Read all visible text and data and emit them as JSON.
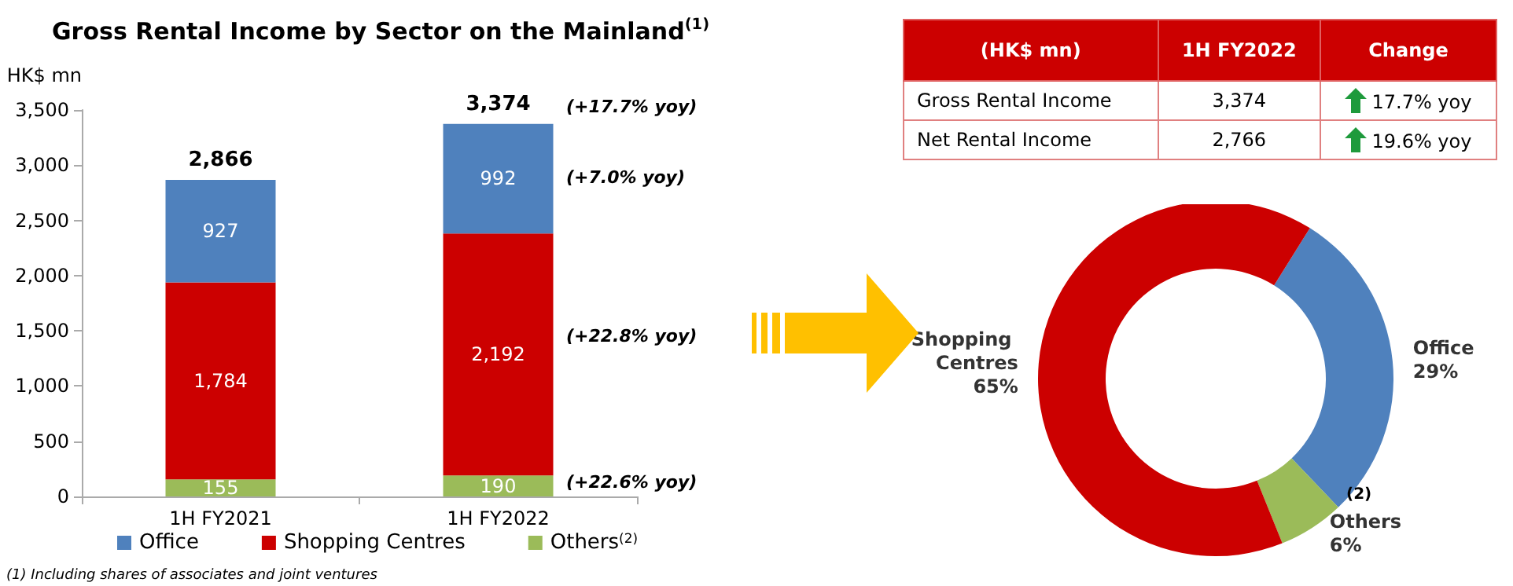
{
  "chart_data": [
    {
      "type": "bar",
      "title": "Gross Rental Income by Sector on the Mainland$^{(1)}$",
      "ylabel": "HK$ mn",
      "categories": [
        "1H FY2021",
        "1H FY2022"
      ],
      "stacked": true,
      "series": [
        {
          "name": "Others$^{(2)}$",
          "color": "#9bbb59",
          "values": [
            155,
            190
          ],
          "value_labels": [
            "155",
            "190"
          ]
        },
        {
          "name": "Shopping Centres",
          "color": "#cc0000",
          "values": [
            1784,
            2192
          ],
          "value_labels": [
            "1,784",
            "2,192"
          ]
        },
        {
          "name": "Office",
          "color": "#4f81bd",
          "values": [
            927,
            992
          ],
          "value_labels": [
            "927",
            "992"
          ]
        }
      ],
      "totals": [
        "2,866",
        "3,374"
      ],
      "ylim": [
        0,
        3500
      ],
      "yticks": [
        {
          "value": 0,
          "label": "0"
        },
        {
          "value": 500,
          "label": "500"
        },
        {
          "value": 1000,
          "label": "1,000"
        },
        {
          "value": 1500,
          "label": "1,500"
        },
        {
          "value": 2000,
          "label": "2,000"
        },
        {
          "value": 2500,
          "label": "2,500"
        },
        {
          "value": 3000,
          "label": "3,000"
        },
        {
          "value": 3500,
          "label": "3,500"
        }
      ],
      "grid": false,
      "legend": "bottom",
      "annotations": [
        "(+17.7% yoy)",
        "(+7.0% yoy)",
        "(+22.8% yoy)",
        "(+22.6% yoy)",
        "(1) Including shares of associates and joint ventures"
      ]
    },
    {
      "type": "other",
      "categories": [
        "(HK$ mn)",
        "1H FY2022",
        "Change"
      ],
      "y_categories": [
        "Gross Rental Income",
        "Net Rental Income"
      ],
      "cell_labels": [
        [
          "3,374",
          "17.7% yoy"
        ],
        [
          "2,766",
          "19.6% yoy"
        ]
      ]
    },
    {
      "type": "donut",
      "categories": [
        "Office",
        "Others",
        "Shopping Centres"
      ],
      "values": [
        29,
        6,
        65
      ],
      "colors": [
        "#4f81bd",
        "#9bbb59",
        "#cc0000"
      ],
      "value_labels": [
        "29%",
        "6%",
        "65%"
      ],
      "data_labels": true,
      "legend": false,
      "annotations": [
        "(2)"
      ]
    }
  ]
}
